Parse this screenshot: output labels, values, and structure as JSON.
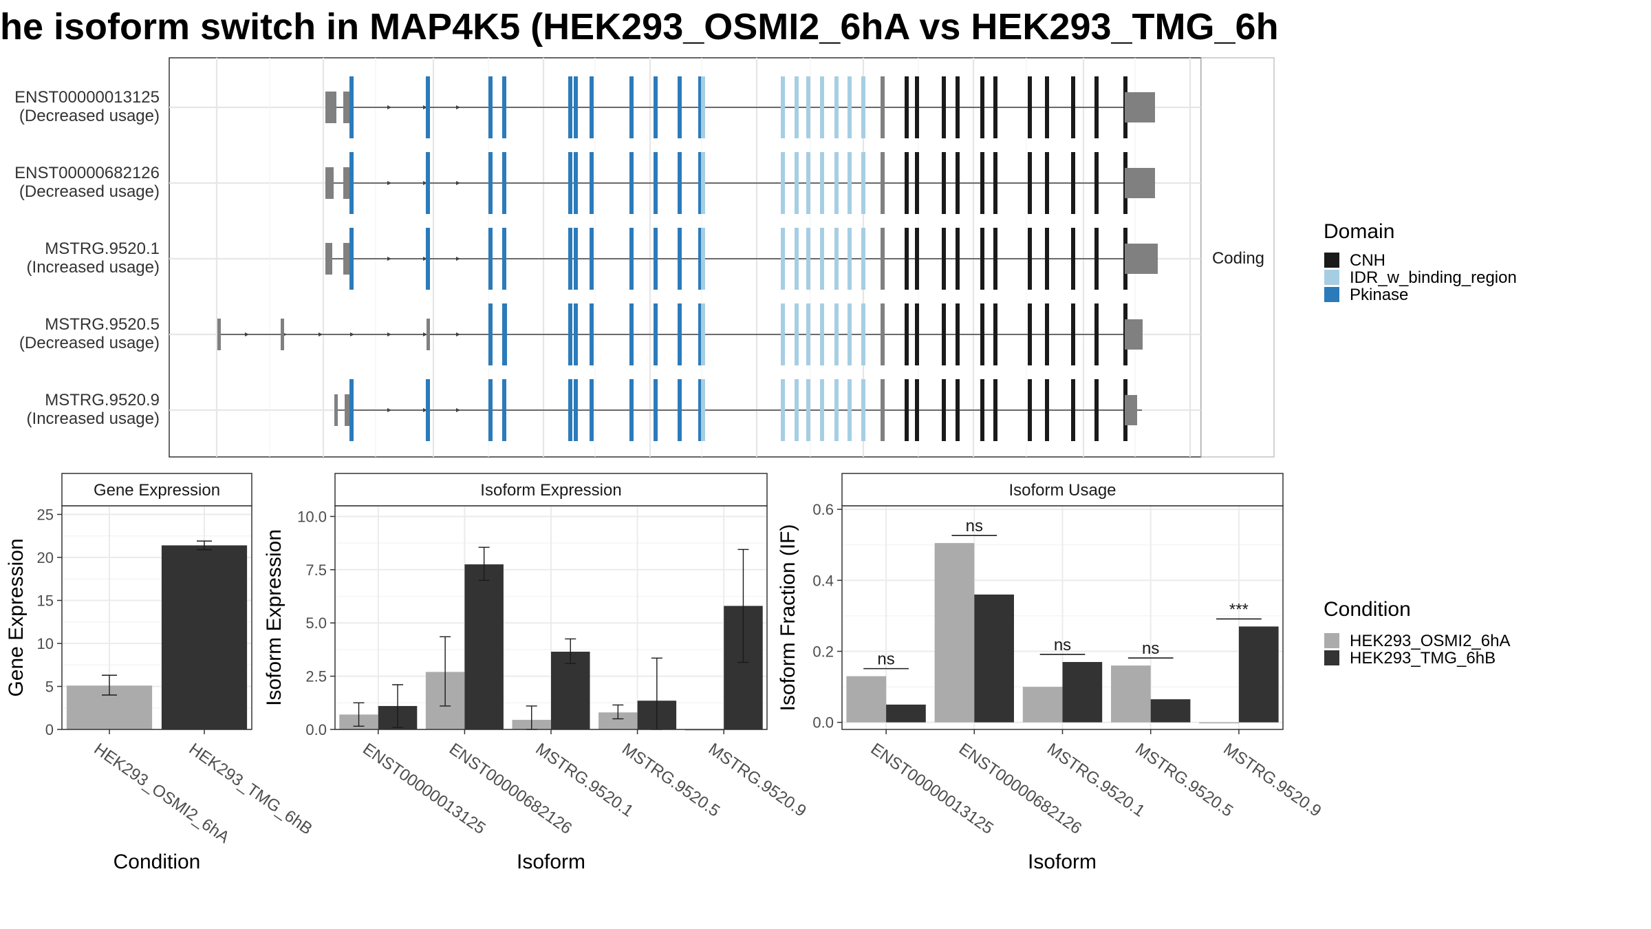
{
  "title": "he isoform switch in MAP4K5 (HEK293_OSMI2_6hA vs HEK293_TMG_6h",
  "transcripts": {
    "facet_label": "Coding",
    "rows": [
      {
        "id": "ENST00000013125",
        "usage": "(Decreased usage)"
      },
      {
        "id": "ENST00000682126",
        "usage": "(Decreased usage)"
      },
      {
        "id": "MSTRG.9520.1",
        "usage": "(Increased usage)"
      },
      {
        "id": "MSTRG.9520.5",
        "usage": "(Decreased usage)"
      },
      {
        "id": "MSTRG.9520.9",
        "usage": "(Increased usage)"
      }
    ]
  },
  "domain_legend": {
    "title": "Domain",
    "items": [
      {
        "label": "CNH",
        "color": "#1a1a1a"
      },
      {
        "label": "IDR_w_binding_region",
        "color": "#a6cee3"
      },
      {
        "label": "Pkinase",
        "color": "#2b7bba"
      }
    ]
  },
  "condition_legend": {
    "title": "Condition",
    "items": [
      {
        "label": "HEK293_OSMI2_6hA",
        "color": "#ababab"
      },
      {
        "label": "HEK293_TMG_6hB",
        "color": "#333333"
      }
    ]
  },
  "colors": {
    "noncoding": "#808080",
    "grid": "#ebebeb",
    "panel_border": "#333333"
  },
  "chart_data": [
    {
      "type": "bar",
      "title": "Gene Expression",
      "xlabel": "Condition",
      "ylabel": "Gene Expression",
      "categories": [
        "HEK293_OSMI2_6hA",
        "HEK293_TMG_6hB"
      ],
      "values": [
        5.1,
        21.4
      ],
      "errors": [
        [
          4.0,
          6.3
        ],
        [
          20.9,
          21.9
        ]
      ],
      "ylim": [
        0,
        26
      ],
      "yticks": [
        "0",
        "5",
        "10",
        "15",
        "20",
        "25"
      ],
      "grid": true
    },
    {
      "type": "bar",
      "title": "Isoform Expression",
      "xlabel": "Isoform",
      "ylabel": "Isoform Expression",
      "categories": [
        "ENST00000013125",
        "ENST00000682126",
        "MSTRG.9520.1",
        "MSTRG.9520.5",
        "MSTRG.9520.9"
      ],
      "series": [
        {
          "name": "HEK293_OSMI2_6hA",
          "values": [
            0.7,
            2.7,
            0.45,
            0.8,
            0.0
          ],
          "errors": [
            [
              0.15,
              1.25
            ],
            [
              1.1,
              4.35
            ],
            [
              0.0,
              1.1
            ],
            [
              0.5,
              1.15
            ],
            [
              0.0,
              0.0
            ]
          ]
        },
        {
          "name": "HEK293_TMG_6hB",
          "values": [
            1.1,
            7.75,
            3.65,
            1.35,
            5.8
          ],
          "errors": [
            [
              0.1,
              2.1
            ],
            [
              7.0,
              8.55
            ],
            [
              3.1,
              4.25
            ],
            [
              0.0,
              3.35
            ],
            [
              3.15,
              8.45
            ]
          ]
        }
      ],
      "ylim": [
        0,
        10.5
      ],
      "yticks": [
        "0.0",
        "2.5",
        "5.0",
        "7.5",
        "10.0"
      ],
      "grid": true
    },
    {
      "type": "bar",
      "title": "Isoform Usage",
      "xlabel": "Isoform",
      "ylabel": "Isoform Fraction (IF)",
      "categories": [
        "ENST00000013125",
        "ENST00000682126",
        "MSTRG.9520.1",
        "MSTRG.9520.5",
        "MSTRG.9520.9"
      ],
      "series": [
        {
          "name": "HEK293_OSMI2_6hA",
          "values": [
            0.13,
            0.505,
            0.1,
            0.16,
            0.0
          ]
        },
        {
          "name": "HEK293_TMG_6hB",
          "values": [
            0.05,
            0.36,
            0.17,
            0.065,
            0.27
          ]
        }
      ],
      "significance": [
        "ns",
        "ns",
        "ns",
        "ns",
        "***"
      ],
      "ylim": [
        -0.02,
        0.61
      ],
      "yticks": [
        "0.0",
        "0.2",
        "0.4",
        "0.6"
      ],
      "grid": true
    }
  ]
}
